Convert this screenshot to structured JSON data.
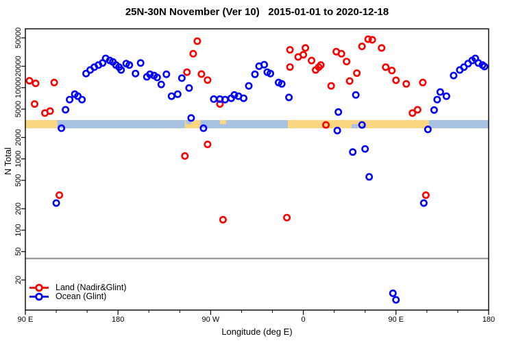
{
  "title": "25N-30N November (Ver 10)   2015-01-01 to 2020-12-18",
  "chart_data": {
    "type": "scatter",
    "title": "25N-30N November (Ver 10)   2015-01-01 to 2020-12-18",
    "xlabel": "Longitude (deg E)",
    "ylabel": "N Total",
    "x_axis": {
      "range": [
        90,
        540
      ],
      "wraps_globe": true,
      "major_ticks": [
        90,
        180,
        270,
        360,
        450,
        540
      ],
      "major_labels": [
        "90 E",
        "180",
        "90 W",
        "0",
        "90 E",
        "180"
      ],
      "minor_tick_step_deg": 30
    },
    "y_axis": {
      "scale": "log",
      "ticks": [
        20,
        50,
        100,
        200,
        500,
        1000,
        2000,
        5000,
        10000,
        20000,
        50000
      ],
      "tick_labels": [
        "20",
        "50",
        "100",
        "200",
        "500",
        "1000",
        "2000",
        "5000",
        "10000",
        "20000",
        "50000"
      ]
    },
    "threshold_line": {
      "value": 40,
      "color": "#9B9B9B"
    },
    "surface_band": {
      "value_center": 3100,
      "land_color": "#FBD681",
      "ocean_color": "#A9C2E2",
      "segments": [
        {
          "type": "land",
          "from": 90,
          "to": 121
        },
        {
          "type": "ocean",
          "from": 121,
          "to": 245
        },
        {
          "type": "land",
          "from": 245,
          "to": 260
        },
        {
          "type": "ocean",
          "from": 260,
          "to": 345
        },
        {
          "type": "land",
          "from": 345,
          "to": 482
        },
        {
          "type": "ocean",
          "from": 482,
          "to": 540
        }
      ],
      "patches": [
        {
          "type": "ocean",
          "from": 246,
          "to": 251,
          "part": "top"
        },
        {
          "type": "land",
          "from": 279,
          "to": 285,
          "part": "top"
        },
        {
          "type": "ocean",
          "from": 407,
          "to": 413,
          "part": "bottom"
        },
        {
          "type": "ocean",
          "from": 417,
          "to": 421,
          "part": "bottom"
        }
      ]
    },
    "series": [
      {
        "name": "Land (Nadir&Glint)",
        "color": "#FF0000",
        "points": [
          [
            94,
            12500
          ],
          [
            100,
            11500
          ],
          [
            118,
            11800
          ],
          [
            99,
            5900
          ],
          [
            109,
            4400
          ],
          [
            114,
            4700
          ],
          [
            123,
            310
          ],
          [
            245,
            1100
          ],
          [
            247,
            16500
          ],
          [
            253,
            30000
          ],
          [
            257,
            45000
          ],
          [
            261,
            15500
          ],
          [
            267,
            12800
          ],
          [
            267,
            1600
          ],
          [
            279,
            5900
          ],
          [
            282,
            140
          ],
          [
            344,
            150
          ],
          [
            347,
            34000
          ],
          [
            347,
            19500
          ],
          [
            355,
            27000
          ],
          [
            360,
            29000
          ],
          [
            362,
            36100
          ],
          [
            368,
            24000
          ],
          [
            372,
            17700
          ],
          [
            375,
            19400
          ],
          [
            377,
            20800
          ],
          [
            382,
            3000
          ],
          [
            387,
            10600
          ],
          [
            392,
            32000
          ],
          [
            397,
            30000
          ],
          [
            402,
            23300
          ],
          [
            405,
            12400
          ],
          [
            412,
            16000
          ],
          [
            417,
            38000
          ],
          [
            423,
            48000
          ],
          [
            427,
            47000
          ],
          [
            436,
            36100
          ],
          [
            440,
            19400
          ],
          [
            446,
            17400
          ],
          [
            450,
            12700
          ],
          [
            460,
            11300
          ],
          [
            466,
            4400
          ],
          [
            471,
            4900
          ],
          [
            476,
            11800
          ],
          [
            479,
            310
          ]
        ]
      },
      {
        "name": "Ocean (Glint)",
        "color": "#0000FF",
        "points": [
          [
            120,
            240
          ],
          [
            125,
            2700
          ],
          [
            129,
            4900
          ],
          [
            133,
            6800
          ],
          [
            138,
            8100
          ],
          [
            141,
            7600
          ],
          [
            145,
            6800
          ],
          [
            149,
            15800
          ],
          [
            153,
            17700
          ],
          [
            157,
            19400
          ],
          [
            161,
            20800
          ],
          [
            165,
            22200
          ],
          [
            168,
            25800
          ],
          [
            172,
            24100
          ],
          [
            175,
            23000
          ],
          [
            178,
            20800
          ],
          [
            181,
            19400
          ],
          [
            183,
            17700
          ],
          [
            188,
            21800
          ],
          [
            191,
            20800
          ],
          [
            197,
            15800
          ],
          [
            202,
            22200
          ],
          [
            208,
            14200
          ],
          [
            211,
            15400
          ],
          [
            215,
            14800
          ],
          [
            218,
            13900
          ],
          [
            222,
            11100
          ],
          [
            227,
            15400
          ],
          [
            232,
            7600
          ],
          [
            238,
            8100
          ],
          [
            242,
            13600
          ],
          [
            249,
            9900
          ],
          [
            251,
            3750
          ],
          [
            263,
            2700
          ],
          [
            273,
            6900
          ],
          [
            279,
            6900
          ],
          [
            284,
            6800
          ],
          [
            290,
            7100
          ],
          [
            293,
            7900
          ],
          [
            297,
            7600
          ],
          [
            302,
            7100
          ],
          [
            307,
            10600
          ],
          [
            313,
            15400
          ],
          [
            317,
            20000
          ],
          [
            322,
            21000
          ],
          [
            325,
            16500
          ],
          [
            328,
            15800
          ],
          [
            336,
            11800
          ],
          [
            339,
            11300
          ],
          [
            346,
            7300
          ],
          [
            393,
            2500
          ],
          [
            394,
            4550
          ],
          [
            408,
            1250
          ],
          [
            411,
            7900
          ],
          [
            417,
            3000
          ],
          [
            420,
            1380
          ],
          [
            424,
            560
          ],
          [
            447,
            13
          ],
          [
            450,
            10.5
          ],
          [
            477,
            240
          ],
          [
            481,
            2600
          ],
          [
            487,
            4850
          ],
          [
            490,
            6800
          ],
          [
            493,
            8700
          ],
          [
            499,
            7600
          ],
          [
            506,
            14800
          ],
          [
            512,
            17700
          ],
          [
            516,
            19400
          ],
          [
            520,
            21800
          ],
          [
            524,
            24100
          ],
          [
            527,
            25800
          ],
          [
            530,
            22200
          ],
          [
            534,
            20800
          ],
          [
            536,
            19800
          ]
        ]
      }
    ],
    "legend": {
      "position": "bottom-left",
      "entries": [
        "Land (Nadir&Glint)",
        "Ocean (Glint)"
      ]
    }
  }
}
